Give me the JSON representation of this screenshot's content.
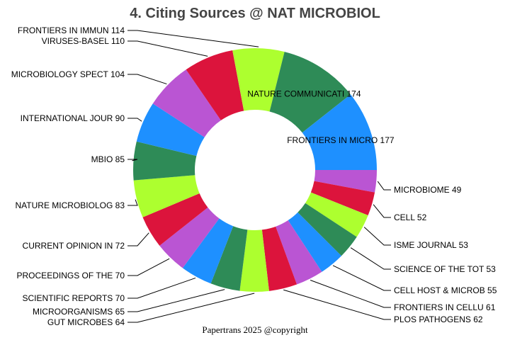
{
  "chart_data": {
    "type": "pie",
    "donut": true,
    "title": "4. Citing Sources @ NAT MICROBIOL",
    "footer": "Papertrans 2025 @copyright",
    "slices": [
      {
        "label": "MICROBIOME",
        "value": 49,
        "color": "#BA55D3"
      },
      {
        "label": "CELL",
        "value": 52,
        "color": "#DC143C"
      },
      {
        "label": "ISME JOURNAL",
        "value": 53,
        "color": "#ADFF2F"
      },
      {
        "label": "SCIENCE OF THE TOT",
        "value": 53,
        "color": "#2E8B57"
      },
      {
        "label": "CELL HOST & MICROB",
        "value": 55,
        "color": "#1E90FF"
      },
      {
        "label": "FRONTIERS IN CELLU",
        "value": 61,
        "color": "#BA55D3"
      },
      {
        "label": "PLOS PATHOGENS",
        "value": 62,
        "color": "#DC143C"
      },
      {
        "label": "GUT MICROBES",
        "value": 64,
        "color": "#ADFF2F"
      },
      {
        "label": "MICROORGANISMS",
        "value": 65,
        "color": "#2E8B57"
      },
      {
        "label": "SCIENTIFIC REPORTS",
        "value": 70,
        "color": "#1E90FF"
      },
      {
        "label": "PROCEEDINGS OF THE",
        "value": 70,
        "color": "#BA55D3"
      },
      {
        "label": "CURRENT OPINION IN",
        "value": 72,
        "color": "#DC143C"
      },
      {
        "label": "NATURE MICROBIOLOG",
        "value": 83,
        "color": "#ADFF2F"
      },
      {
        "label": "MBIO",
        "value": 85,
        "color": "#2E8B57"
      },
      {
        "label": "INTERNATIONAL JOUR",
        "value": 90,
        "color": "#1E90FF"
      },
      {
        "label": "MICROBIOLOGY SPECT",
        "value": 104,
        "color": "#BA55D3"
      },
      {
        "label": "VIRUSES-BASEL",
        "value": 110,
        "color": "#DC143C"
      },
      {
        "label": "FRONTIERS IN IMMUN",
        "value": 114,
        "color": "#ADFF2F"
      },
      {
        "label": "NATURE COMMUNICATI",
        "value": 174,
        "color": "#2E8B57"
      },
      {
        "label": "FRONTIERS IN MICRO",
        "value": 177,
        "color": "#1E90FF"
      }
    ]
  }
}
